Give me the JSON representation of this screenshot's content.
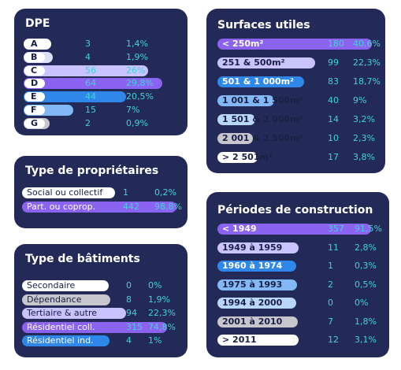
{
  "colors": {
    "card_bg": "#232a57",
    "value_text": "#3fd3d6"
  },
  "chart_data": [
    {
      "type": "bar",
      "title": "DPE",
      "categories": [
        "A",
        "B",
        "C",
        "D",
        "E",
        "F",
        "G"
      ],
      "values": [
        3,
        4,
        56,
        64,
        44,
        15,
        2
      ],
      "percent_labels": [
        "1,4%",
        "1,9%",
        "26%",
        "29,8%",
        "20,5%",
        "7%",
        "0,9%"
      ],
      "max": 64,
      "colors": [
        "#ffffff",
        "#dde0ff",
        "#c9c3ff",
        "#8a63f1",
        "#2f88e9",
        "#82b8f5",
        "#c6c6cc"
      ]
    },
    {
      "type": "bar",
      "title": "Surfaces utiles",
      "categories": [
        "< 250m²",
        "251 & 500m²",
        "501 & 1 000m²",
        "1 001 & 1 500m²",
        "1 501 & 2 000m²",
        "2 001 & 2 500m²",
        "> 2 501m²"
      ],
      "values": [
        180,
        99,
        83,
        40,
        14,
        10,
        17
      ],
      "percent_labels": [
        "40,6%",
        "22,3%",
        "18,7%",
        "9%",
        "3,2%",
        "2,3%",
        "3,8%"
      ],
      "max": 180,
      "colors": [
        "#8a63f1",
        "#c9c3ff",
        "#2f88e9",
        "#82b8f5",
        "#b9d6fb",
        "#c6c6cc",
        "#ffffff"
      ]
    },
    {
      "type": "bar",
      "title": "Type de propriétaires",
      "categories": [
        "Social ou collectif",
        "Part. ou coprop."
      ],
      "values": [
        1,
        442
      ],
      "percent_labels": [
        "0,2%",
        "98,8%"
      ],
      "max": 442,
      "colors": [
        "#ffffff",
        "#8a63f1"
      ]
    },
    {
      "type": "bar",
      "title": "Type de bâtiments",
      "categories": [
        "Secondaire",
        "Dépendance",
        "Tertiaire & autre",
        "Résidentiel coll.",
        "Résidentiel ind."
      ],
      "values": [
        0,
        8,
        94,
        315,
        4
      ],
      "percent_labels": [
        "0%",
        "1,9%",
        "22,3%",
        "74,8%",
        "1%"
      ],
      "max": 315,
      "colors": [
        "#ffffff",
        "#c6c6cc",
        "#c9c3ff",
        "#8a63f1",
        "#2f88e9"
      ]
    },
    {
      "type": "bar",
      "title": "Périodes de construction",
      "categories": [
        "< 1949",
        "1949 à 1959",
        "1960 à 1974",
        "1975 à 1993",
        "1994 à 2000",
        "2001 à 2010",
        "> 2011"
      ],
      "values": [
        357,
        11,
        1,
        2,
        0,
        7,
        12
      ],
      "percent_labels": [
        "91,5%",
        "2,8%",
        "0,3%",
        "0,5%",
        "0%",
        "1,8%",
        "3,1%"
      ],
      "max": 357,
      "colors": [
        "#8a63f1",
        "#c9c3ff",
        "#2f88e9",
        "#82b8f5",
        "#b9d6fb",
        "#c6c6cc",
        "#ffffff"
      ]
    }
  ]
}
